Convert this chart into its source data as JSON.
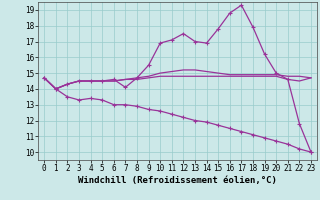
{
  "xlabel": "Windchill (Refroidissement éolien,°C)",
  "bg_color": "#cce8e8",
  "grid_color": "#99cccc",
  "line_color": "#993399",
  "xlim": [
    -0.5,
    23.5
  ],
  "ylim": [
    9.5,
    19.5
  ],
  "xticks": [
    0,
    1,
    2,
    3,
    4,
    5,
    6,
    7,
    8,
    9,
    10,
    11,
    12,
    13,
    14,
    15,
    16,
    17,
    18,
    19,
    20,
    21,
    22,
    23
  ],
  "yticks": [
    10,
    11,
    12,
    13,
    14,
    15,
    16,
    17,
    18,
    19
  ],
  "line1_x": [
    0,
    1,
    2,
    3,
    4,
    5,
    6,
    7,
    8,
    9,
    10,
    11,
    12,
    13,
    14,
    15,
    16,
    17,
    18,
    19,
    20,
    21,
    22,
    23
  ],
  "line1_y": [
    14.7,
    14.0,
    14.3,
    14.5,
    14.5,
    14.5,
    14.5,
    14.6,
    14.7,
    14.8,
    15.0,
    15.1,
    15.2,
    15.2,
    15.1,
    15.0,
    14.9,
    14.9,
    14.9,
    14.9,
    14.9,
    14.8,
    14.8,
    14.7
  ],
  "line2_x": [
    0,
    1,
    2,
    3,
    4,
    5,
    6,
    7,
    8,
    9,
    10,
    11,
    12,
    13,
    14,
    15,
    16,
    17,
    18,
    19,
    20,
    21,
    22,
    23
  ],
  "line2_y": [
    14.7,
    14.0,
    14.3,
    14.5,
    14.5,
    14.5,
    14.6,
    14.1,
    14.7,
    15.5,
    16.9,
    17.1,
    17.5,
    17.0,
    16.9,
    17.8,
    18.8,
    19.3,
    17.9,
    16.2,
    15.0,
    14.6,
    11.8,
    10.0
  ],
  "line3_x": [
    0,
    1,
    2,
    3,
    4,
    5,
    6,
    7,
    8,
    9,
    10,
    11,
    12,
    13,
    14,
    15,
    16,
    17,
    18,
    19,
    20,
    21,
    22,
    23
  ],
  "line3_y": [
    14.7,
    14.0,
    13.5,
    13.3,
    13.4,
    13.3,
    13.0,
    13.0,
    12.9,
    12.7,
    12.6,
    12.4,
    12.2,
    12.0,
    11.9,
    11.7,
    11.5,
    11.3,
    11.1,
    10.9,
    10.7,
    10.5,
    10.2,
    10.0
  ],
  "line4_x": [
    0,
    1,
    2,
    3,
    4,
    5,
    6,
    7,
    8,
    9,
    10,
    11,
    12,
    13,
    14,
    15,
    16,
    17,
    18,
    19,
    20,
    21,
    22,
    23
  ],
  "line4_y": [
    14.7,
    14.0,
    14.3,
    14.5,
    14.5,
    14.5,
    14.5,
    14.6,
    14.6,
    14.7,
    14.8,
    14.8,
    14.8,
    14.8,
    14.8,
    14.8,
    14.8,
    14.8,
    14.8,
    14.8,
    14.8,
    14.6,
    14.5,
    14.7
  ],
  "tick_fontsize": 5.5,
  "label_fontsize": 6.5
}
